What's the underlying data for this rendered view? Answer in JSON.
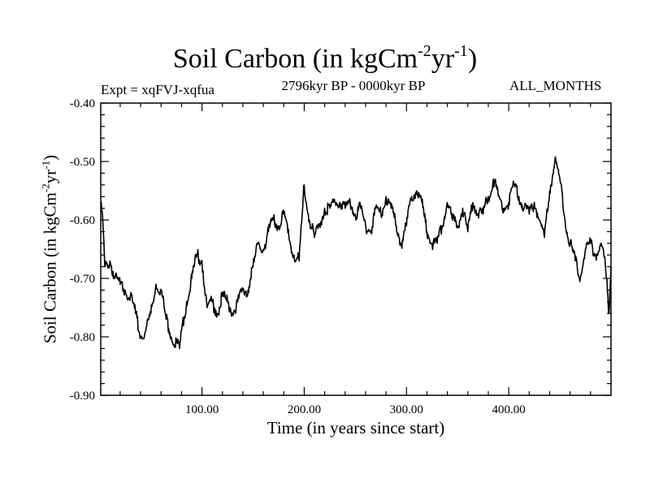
{
  "chart_data": {
    "type": "line",
    "title": {
      "main": "Soil Carbon (in kgCm",
      "sup1": "-2",
      "mid": "yr",
      "sup2": "-1",
      "end": ")"
    },
    "subtitle_left": "Expt = xqFVJ-xqfua",
    "subtitle_center": "2796kyr BP - 0000kyr BP",
    "subtitle_right": "ALL_MONTHS",
    "xlabel": "Time (in years since start)",
    "ylabel": {
      "main": "Soil Carbon (in kgCm",
      "sup1": "-2",
      "mid": "yr",
      "sup2": "-1",
      "end": ")"
    },
    "xlim": [
      1,
      500
    ],
    "ylim": [
      -0.9,
      -0.4
    ],
    "x_ticks": [
      100,
      200,
      300,
      400
    ],
    "x_tick_labels": [
      "100.00",
      "200.00",
      "300.00",
      "400.00"
    ],
    "y_ticks": [
      -0.9,
      -0.8,
      -0.7,
      -0.6,
      -0.5,
      -0.4
    ],
    "y_tick_labels": [
      "-0.90",
      "-0.80",
      "-0.70",
      "-0.60",
      "-0.50",
      "-0.40"
    ],
    "grid": false,
    "series": [
      {
        "name": "Soil Carbon",
        "color": "#000000",
        "x": [
          1,
          3,
          5,
          10,
          15,
          20,
          25,
          30,
          35,
          40,
          45,
          50,
          55,
          60,
          65,
          70,
          75,
          78,
          80,
          85,
          90,
          95,
          100,
          105,
          110,
          115,
          120,
          125,
          130,
          135,
          140,
          145,
          150,
          155,
          160,
          165,
          170,
          175,
          180,
          185,
          190,
          195,
          200,
          205,
          210,
          215,
          220,
          225,
          230,
          235,
          240,
          245,
          250,
          255,
          260,
          265,
          270,
          275,
          280,
          285,
          290,
          295,
          300,
          305,
          310,
          315,
          320,
          325,
          330,
          335,
          340,
          345,
          350,
          355,
          360,
          365,
          370,
          375,
          380,
          385,
          390,
          395,
          400,
          405,
          410,
          415,
          420,
          425,
          430,
          435,
          440,
          445,
          450,
          455,
          460,
          465,
          470,
          475,
          480,
          485,
          490,
          493,
          495,
          498,
          500
        ],
        "values": [
          -0.57,
          -0.6,
          -0.68,
          -0.67,
          -0.7,
          -0.71,
          -0.72,
          -0.73,
          -0.76,
          -0.8,
          -0.79,
          -0.76,
          -0.71,
          -0.72,
          -0.77,
          -0.8,
          -0.81,
          -0.82,
          -0.79,
          -0.74,
          -0.7,
          -0.66,
          -0.67,
          -0.75,
          -0.74,
          -0.76,
          -0.73,
          -0.74,
          -0.76,
          -0.74,
          -0.72,
          -0.72,
          -0.68,
          -0.64,
          -0.65,
          -0.62,
          -0.6,
          -0.61,
          -0.59,
          -0.63,
          -0.66,
          -0.67,
          -0.54,
          -0.6,
          -0.63,
          -0.61,
          -0.58,
          -0.58,
          -0.57,
          -0.57,
          -0.58,
          -0.57,
          -0.59,
          -0.58,
          -0.61,
          -0.62,
          -0.58,
          -0.59,
          -0.56,
          -0.58,
          -0.61,
          -0.64,
          -0.61,
          -0.56,
          -0.55,
          -0.57,
          -0.62,
          -0.64,
          -0.64,
          -0.61,
          -0.57,
          -0.6,
          -0.61,
          -0.58,
          -0.62,
          -0.57,
          -0.59,
          -0.59,
          -0.56,
          -0.53,
          -0.56,
          -0.58,
          -0.57,
          -0.54,
          -0.56,
          -0.58,
          -0.59,
          -0.57,
          -0.6,
          -0.63,
          -0.55,
          -0.5,
          -0.53,
          -0.6,
          -0.64,
          -0.67,
          -0.7,
          -0.65,
          -0.64,
          -0.66,
          -0.64,
          -0.66,
          -0.69,
          -0.76,
          -0.68
        ]
      }
    ]
  }
}
